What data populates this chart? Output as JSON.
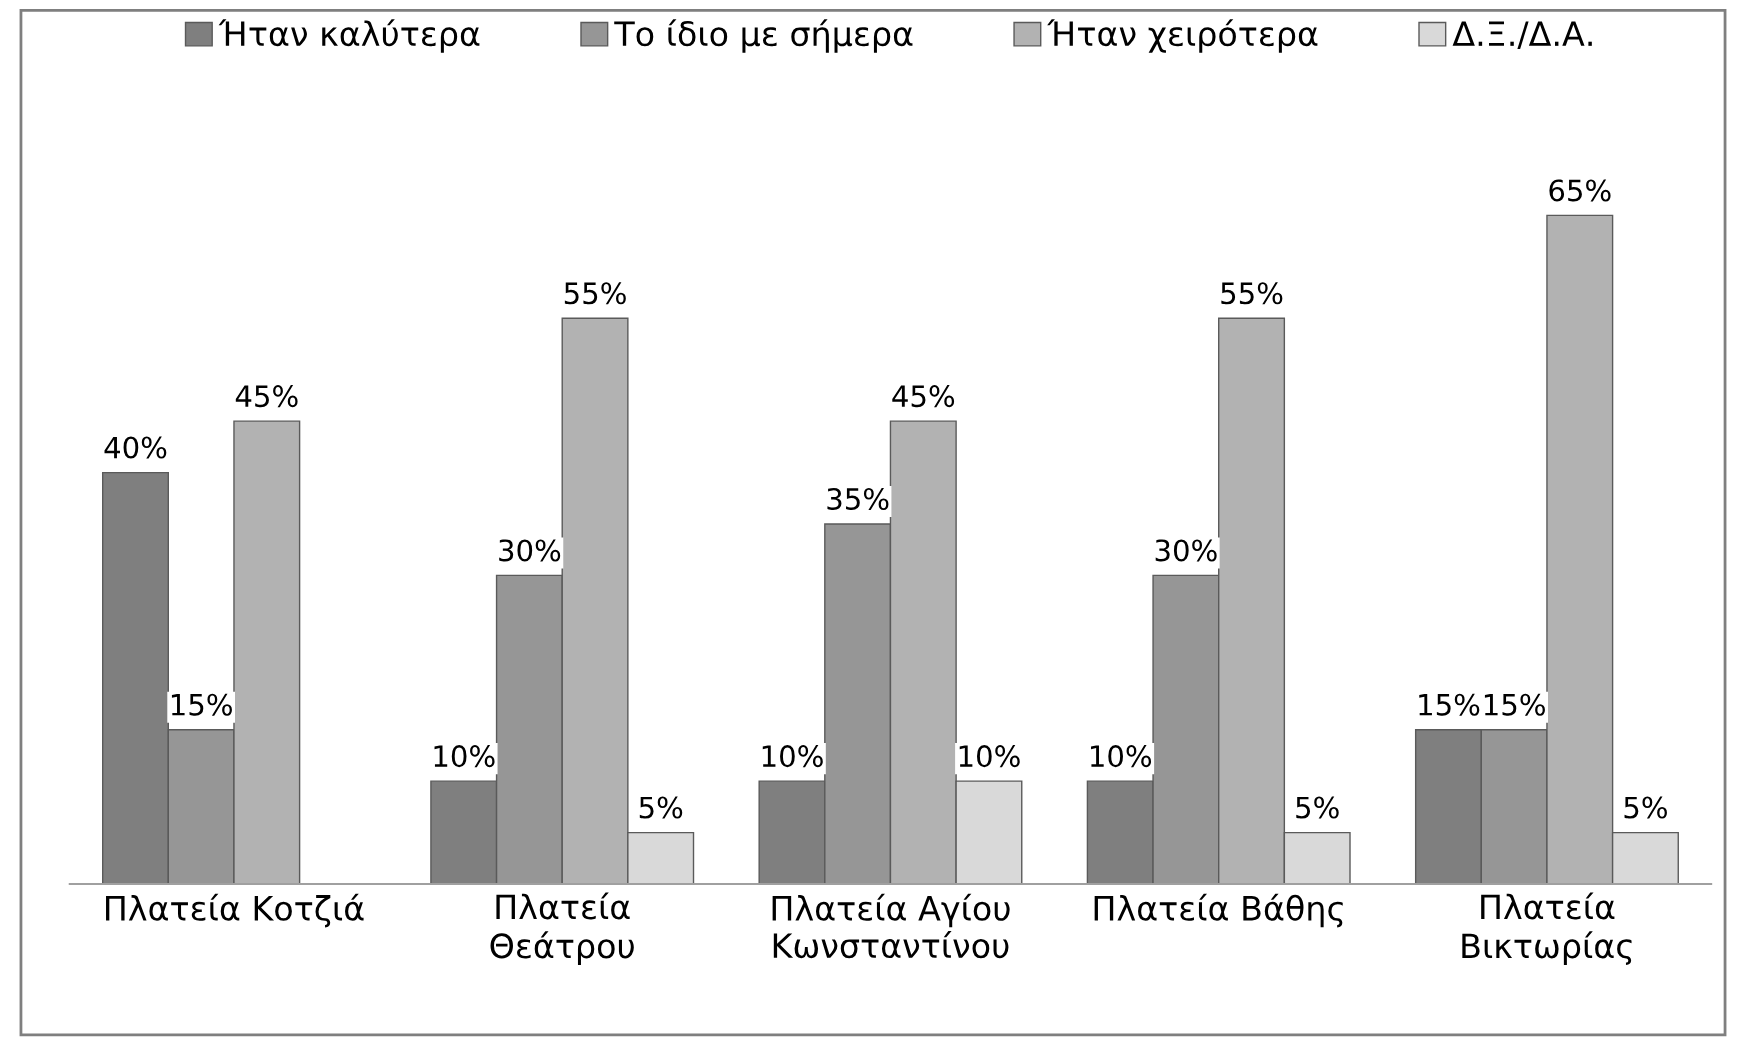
{
  "chart_data": {
    "type": "bar",
    "categories": [
      "Πλατεία Κοτζιά",
      "Πλατεία\nΘεάτρου",
      "Πλατεία Αγίου\nΚωνσταντίνου",
      "Πλατεία Βάθης",
      "Πλατεία\nΒικτωρίας"
    ],
    "series": [
      {
        "name": "Ήταν καλύτερα",
        "color": "#7f7f7f",
        "values": [
          40,
          10,
          10,
          10,
          15
        ],
        "value_labels": [
          "40%",
          "10%",
          "10%",
          "10%",
          "15%"
        ]
      },
      {
        "name": "Το ίδιο με σήμερα",
        "color": "#969696",
        "values": [
          15,
          30,
          35,
          30,
          15
        ],
        "value_labels": [
          "15%",
          "30%",
          "35%",
          "30%",
          "15%"
        ]
      },
      {
        "name": "Ήταν χειρότερα",
        "color": "#b2b2b2",
        "values": [
          45,
          55,
          45,
          55,
          65
        ],
        "value_labels": [
          "45%",
          "55%",
          "45%",
          "55%",
          "65%"
        ]
      },
      {
        "name": "Δ.Ξ./Δ.Α.",
        "color": "#d9d9d9",
        "values": [
          null,
          5,
          10,
          5,
          5
        ],
        "value_labels": [
          null,
          "5%",
          "10%",
          "5%",
          "5%"
        ]
      }
    ],
    "legend": "top",
    "grid": false,
    "tick_labels": "x"
  }
}
